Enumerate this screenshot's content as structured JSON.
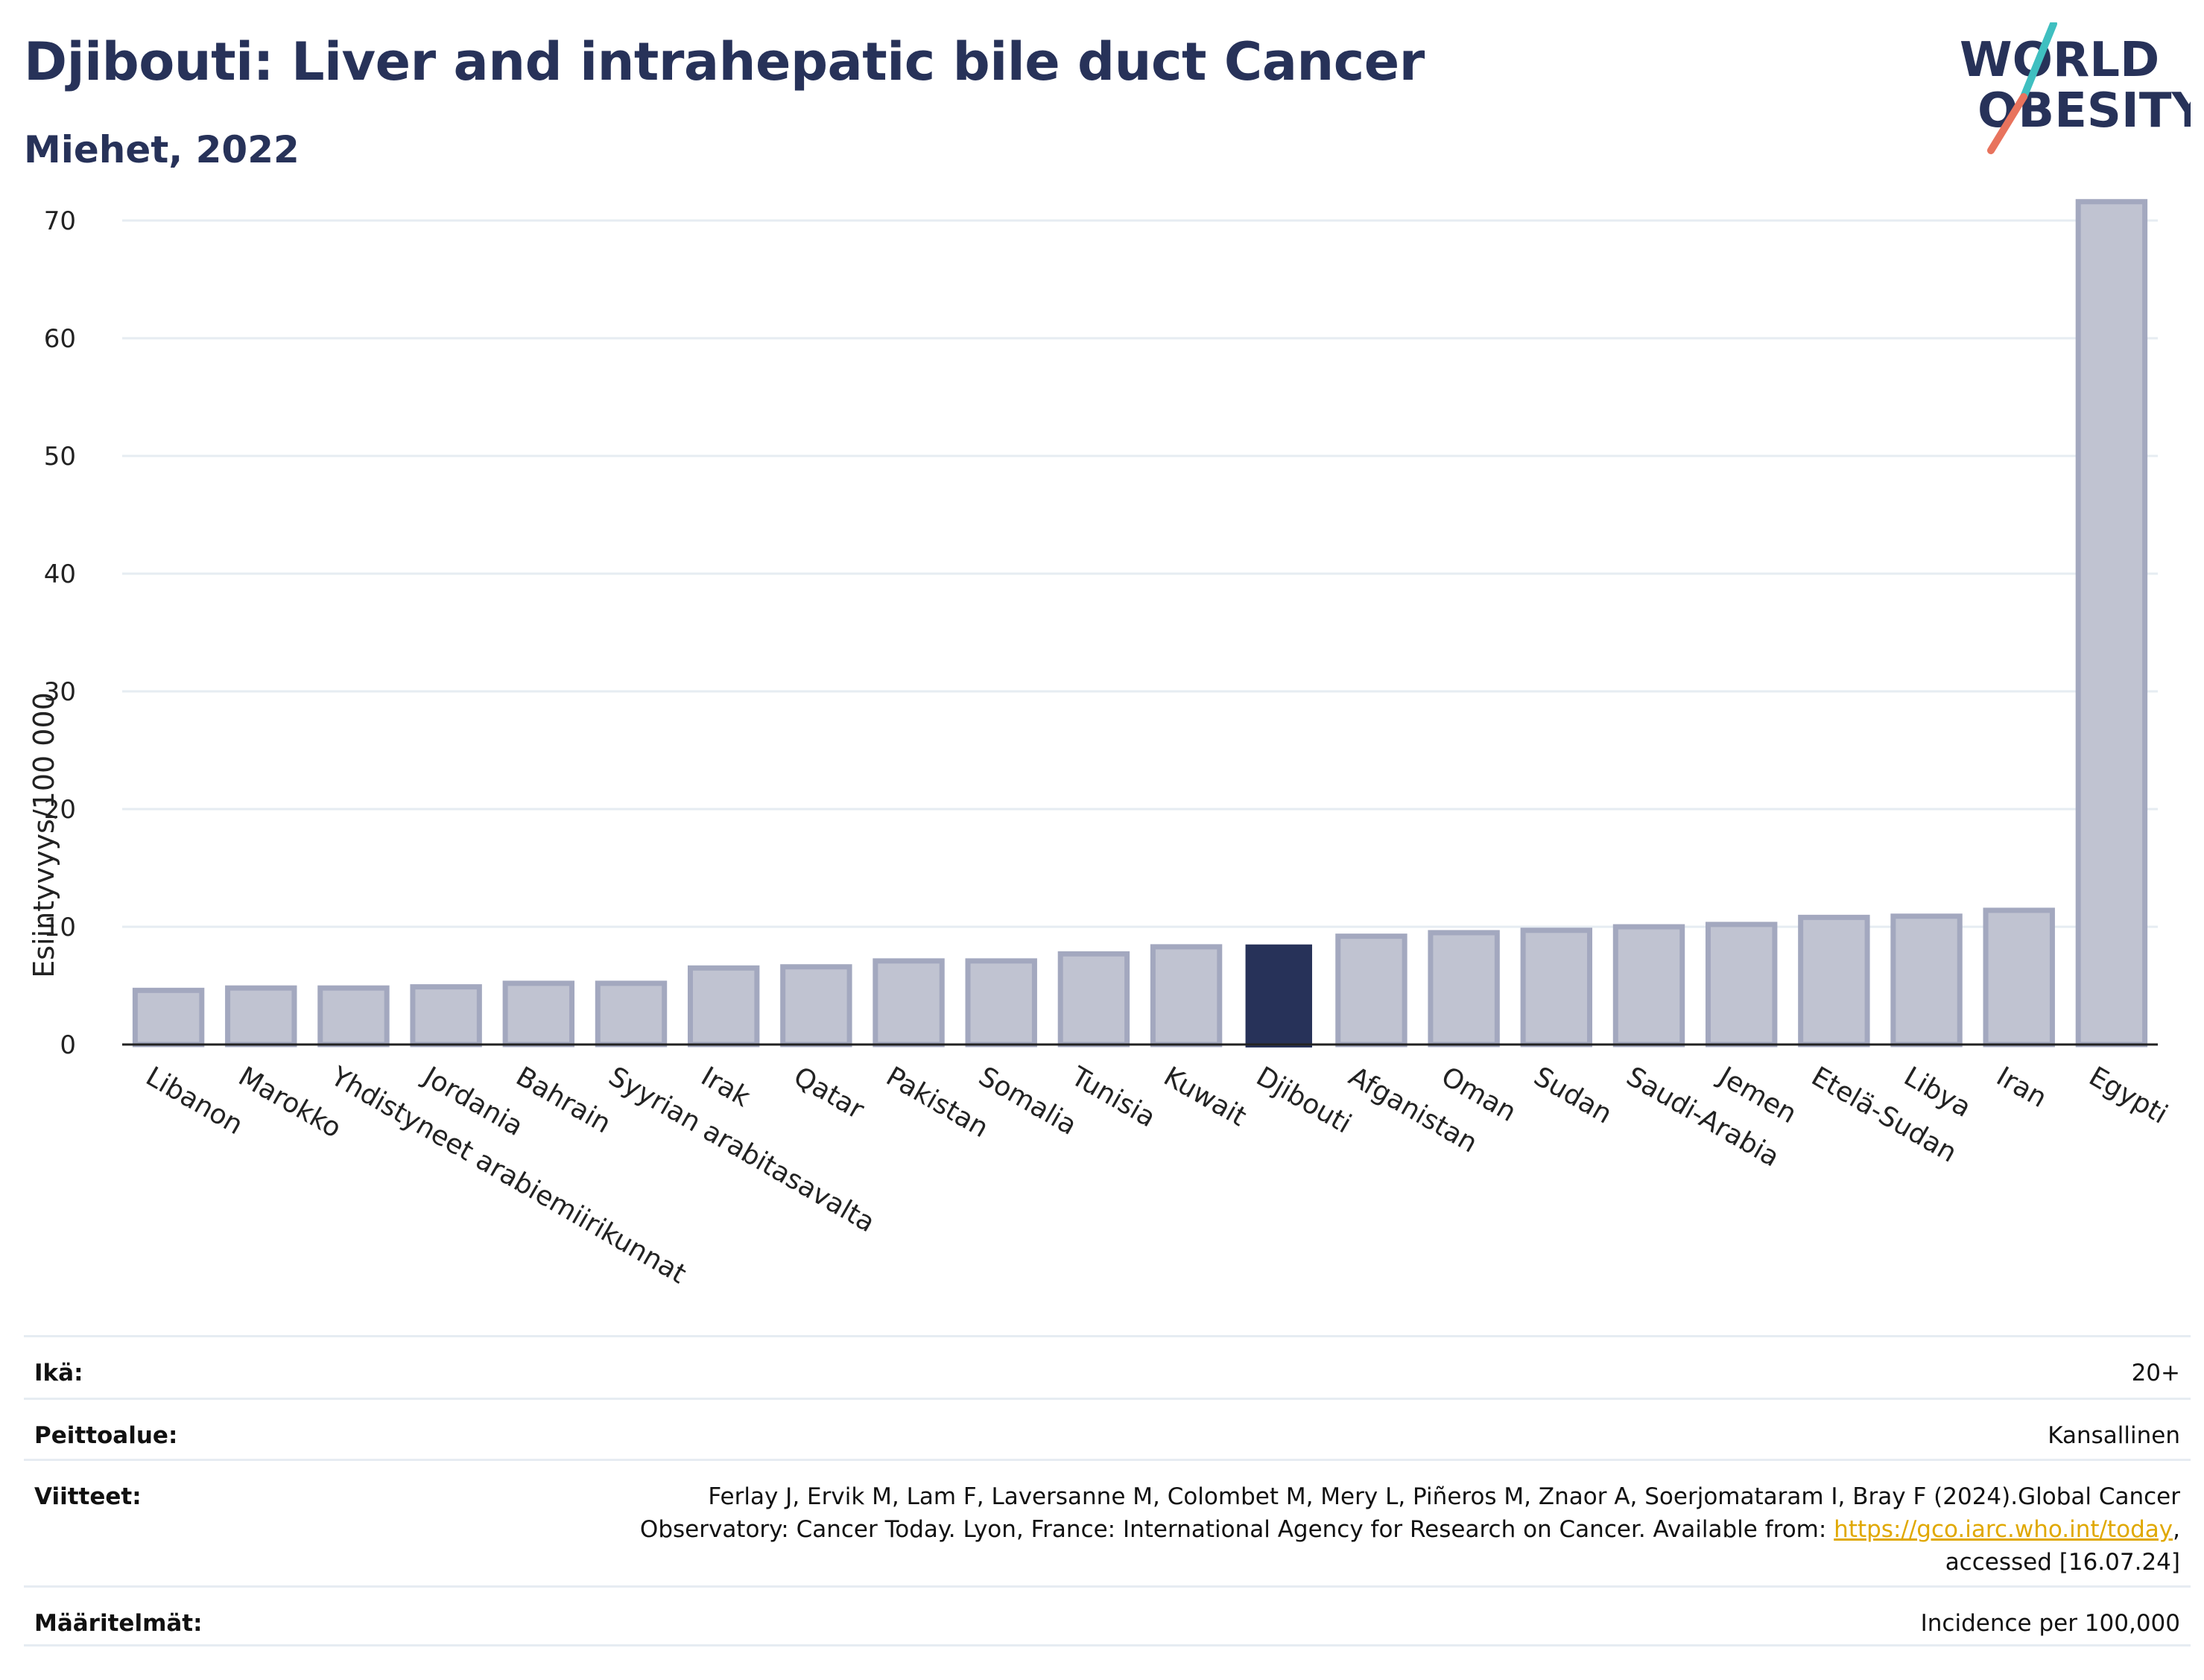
{
  "header": {
    "title": "Djibouti: Liver and intrahepatic bile duct Cancer",
    "subtitle": "Miehet, 2022"
  },
  "logo": {
    "line1": "WORLD",
    "line2": "OBESITY"
  },
  "colors": {
    "highlight": "#273259",
    "bar": "#c0c3d1",
    "bar_edge": "#a3a8bf",
    "grid": "#e6ecf2",
    "link": "#e0a800"
  },
  "chart_data": {
    "type": "bar",
    "ylabel": "Esiintyvyys/100 000",
    "xlabel": "",
    "ylim": [
      0,
      73
    ],
    "yticks": [
      0,
      10,
      20,
      30,
      40,
      50,
      60,
      70
    ],
    "grid": true,
    "highlight": "Djibouti",
    "categories": [
      "Libanon",
      "Marokko",
      "Yhdistyneet arabiemiirikunnat",
      "Jordania",
      "Bahrain",
      "Syyrian arabitasavalta",
      "Irak",
      "Qatar",
      "Pakistan",
      "Somalia",
      "Tunisia",
      "Kuwait",
      "Djibouti",
      "Afganistan",
      "Oman",
      "Sudan",
      "Saudi-Arabia",
      "Jemen",
      "Etelä-Sudan",
      "Libya",
      "Iran",
      "Egypti"
    ],
    "values": [
      4.6,
      4.8,
      4.8,
      4.9,
      5.2,
      5.2,
      6.5,
      6.6,
      7.1,
      7.1,
      7.7,
      8.3,
      8.5,
      9.2,
      9.5,
      9.7,
      10.0,
      10.2,
      10.8,
      10.9,
      11.4,
      71.6
    ]
  },
  "info": {
    "age_label": "Ikä:",
    "age_value": "20+",
    "coverage_label": "Peittoalue:",
    "coverage_value": "Kansallinen",
    "refs_label": "Viitteet:",
    "refs_line1": "Ferlay J, Ervik M, Lam F, Laversanne M, Colombet M, Mery L, Piñeros M, Znaor A, Soerjomataram I, Bray F (2024).Global Cancer",
    "refs_line2": "Observatory: Cancer Today. Lyon, France: International Agency for Research on Cancer. Available from: ",
    "refs_link": "https://gco.iarc.who.int/today",
    "refs_line2_end": ",",
    "refs_line3": "accessed [16.07.24]",
    "def_label": "Määritelmät:",
    "def_value": "Incidence per 100,000"
  }
}
